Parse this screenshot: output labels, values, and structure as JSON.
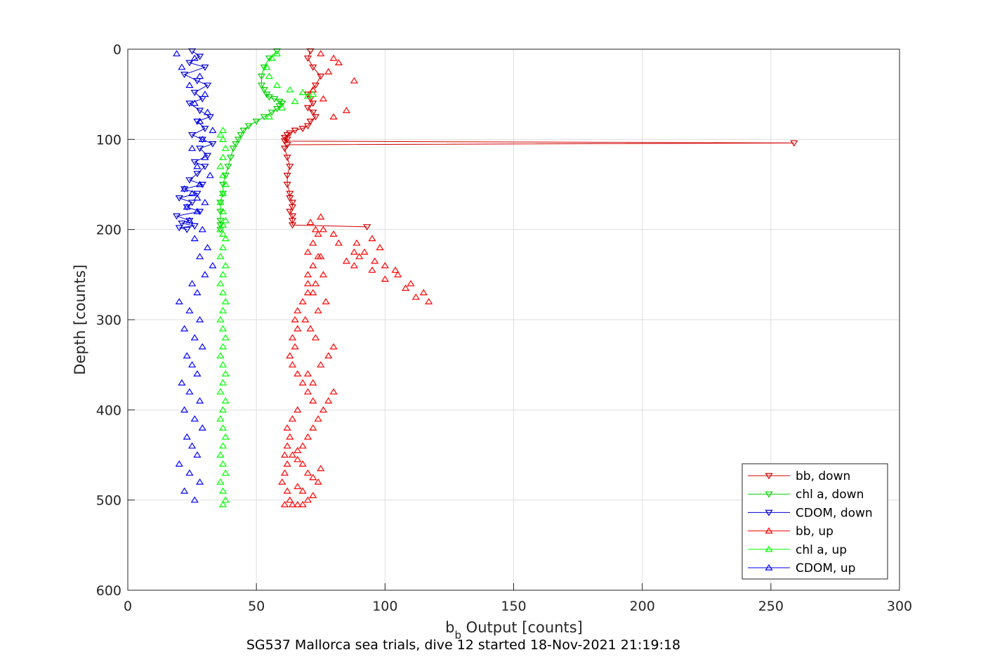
{
  "chart_data": {
    "type": "scatter",
    "title": "",
    "caption": "SG537 Mallorca sea trials, dive 12 started 18-Nov-2021 21:19:18",
    "xlabel_main": "b",
    "xlabel_sub": "b",
    "xlabel_rest": " Output [counts]",
    "ylabel": "Depth [counts]",
    "xlim": [
      0,
      300
    ],
    "ylim": [
      0,
      600
    ],
    "y_reversed": true,
    "xticks": [
      "0",
      "50",
      "100",
      "150",
      "200",
      "250",
      "300"
    ],
    "yticks": [
      "0",
      "100",
      "200",
      "300",
      "400",
      "500",
      "600"
    ],
    "grid": true,
    "legend_position": "bottom-right",
    "series": [
      {
        "name": "bb, down",
        "color": "#d10000",
        "marker": "triangle-down",
        "line": true,
        "x": [
          71,
          70,
          72,
          75,
          73,
          70,
          71,
          72,
          70,
          72,
          73,
          71,
          70,
          68,
          65,
          63,
          62,
          61,
          62,
          61,
          259,
          62,
          61,
          62,
          63,
          62,
          62,
          63,
          63,
          64,
          64,
          63,
          64,
          64,
          64,
          93
        ],
        "y": [
          2,
          10,
          20,
          30,
          40,
          50,
          55,
          60,
          65,
          70,
          75,
          80,
          85,
          88,
          90,
          93,
          95,
          98,
          100,
          102,
          104,
          106,
          110,
          120,
          130,
          140,
          150,
          160,
          165,
          170,
          175,
          180,
          185,
          190,
          195,
          197
        ]
      },
      {
        "name": "chl a, down",
        "color": "#00d000",
        "marker": "triangle-down",
        "line": true,
        "x": [
          58,
          55,
          53,
          52,
          52,
          53,
          54,
          55,
          57,
          59,
          60,
          59,
          58,
          56,
          53,
          50,
          47,
          45,
          44,
          43,
          42,
          41,
          40,
          39,
          38,
          37,
          37,
          36,
          36,
          36,
          36,
          36
        ],
        "y": [
          2,
          10,
          20,
          30,
          40,
          45,
          50,
          53,
          55,
          58,
          60,
          63,
          66,
          70,
          75,
          80,
          85,
          90,
          95,
          100,
          105,
          110,
          120,
          130,
          140,
          150,
          160,
          170,
          180,
          190,
          195,
          200
        ]
      },
      {
        "name": "CDOM, down",
        "color": "#0000d0",
        "marker": "triangle-down",
        "line": true,
        "x": [
          25,
          28,
          24,
          30,
          22,
          27,
          31,
          26,
          29,
          24,
          28,
          32,
          27,
          30,
          25,
          29,
          33,
          28,
          31,
          26,
          30,
          27,
          24,
          29,
          22,
          27,
          20,
          25,
          23,
          28,
          19,
          24,
          21,
          26,
          20,
          23
        ],
        "y": [
          2,
          8,
          15,
          20,
          28,
          35,
          40,
          48,
          55,
          60,
          68,
          75,
          80,
          88,
          95,
          100,
          105,
          110,
          118,
          125,
          130,
          138,
          145,
          150,
          155,
          160,
          165,
          170,
          175,
          180,
          185,
          190,
          193,
          196,
          198,
          200
        ]
      },
      {
        "name": "bb, up",
        "color": "#ff0000",
        "marker": "triangle-up",
        "line": false,
        "x": [
          75,
          80,
          82,
          78,
          88,
          72,
          76,
          85,
          80,
          95,
          98,
          90,
          89,
          92,
          96,
          100,
          104,
          105,
          110,
          115,
          117,
          112,
          108,
          100,
          95,
          85,
          88,
          82,
          80,
          76,
          74,
          72,
          70,
          70,
          72,
          68,
          66,
          65,
          66,
          64,
          65,
          63,
          64,
          66,
          68,
          70,
          72,
          66,
          64,
          62,
          63,
          62,
          61,
          62,
          61,
          60,
          62,
          63,
          61,
          64,
          66,
          68,
          70,
          72,
          68,
          66,
          74,
          72,
          70,
          75,
          68,
          66,
          64,
          66,
          68,
          70,
          72,
          74,
          76,
          78,
          80,
          72,
          70,
          75,
          78,
          80,
          73,
          71,
          69,
          74,
          77,
          70,
          73,
          76,
          88,
          75,
          70,
          72,
          74,
          73,
          71,
          75
        ],
        "y": [
          5,
          10,
          15,
          25,
          35,
          45,
          55,
          68,
          75,
          210,
          220,
          230,
          215,
          225,
          235,
          240,
          245,
          250,
          260,
          270,
          280,
          275,
          265,
          255,
          245,
          235,
          225,
          215,
          205,
          200,
          230,
          240,
          250,
          260,
          270,
          280,
          290,
          300,
          310,
          320,
          330,
          340,
          350,
          360,
          370,
          380,
          390,
          400,
          410,
          420,
          430,
          440,
          450,
          460,
          470,
          480,
          490,
          500,
          505,
          505,
          505,
          505,
          500,
          495,
          490,
          485,
          480,
          475,
          470,
          465,
          460,
          455,
          450,
          445,
          440,
          430,
          420,
          410,
          400,
          390,
          380,
          370,
          360,
          350,
          340,
          330,
          320,
          310,
          300,
          290,
          280,
          270,
          260,
          250,
          240,
          230,
          225,
          215,
          205,
          200,
          192,
          186
        ]
      },
      {
        "name": "chl a, up",
        "color": "#00ff00",
        "marker": "triangle-up",
        "line": false,
        "x": [
          37,
          38,
          37,
          36,
          38,
          37,
          36,
          37,
          38,
          37,
          36,
          37,
          38,
          36,
          37,
          38,
          37,
          36,
          37,
          38,
          37,
          36,
          37,
          38,
          37,
          36,
          37,
          38,
          36,
          37,
          38,
          37,
          36,
          37,
          38,
          37,
          36,
          37,
          38,
          37,
          36,
          37,
          38,
          37,
          36,
          37,
          55,
          60,
          65,
          70,
          72,
          68,
          63,
          58,
          55,
          54,
          56,
          58
        ],
        "y": [
          505,
          500,
          490,
          480,
          470,
          460,
          450,
          440,
          430,
          420,
          410,
          400,
          390,
          380,
          370,
          360,
          350,
          340,
          330,
          320,
          310,
          300,
          290,
          280,
          270,
          260,
          250,
          240,
          230,
          220,
          210,
          205,
          200,
          195,
          190,
          180,
          170,
          160,
          150,
          140,
          130,
          120,
          110,
          100,
          95,
          90,
          75,
          65,
          58,
          52,
          50,
          48,
          45,
          40,
          30,
          20,
          10,
          5
        ]
      },
      {
        "name": "CDOM, up",
        "color": "#0000ff",
        "marker": "triangle-up",
        "line": false,
        "x": [
          26,
          22,
          28,
          24,
          20,
          27,
          25,
          23,
          29,
          26,
          22,
          28,
          24,
          21,
          27,
          25,
          23,
          29,
          26,
          22,
          28,
          24,
          20,
          27,
          25,
          30,
          33,
          28,
          31,
          26,
          29,
          24,
          27,
          30,
          25,
          28,
          32,
          27,
          30,
          25,
          29,
          33,
          28,
          31,
          26,
          30,
          24,
          28,
          21,
          26,
          19,
          23,
          27,
          22
        ],
        "y": [
          500,
          490,
          480,
          470,
          460,
          450,
          440,
          430,
          420,
          410,
          400,
          390,
          380,
          370,
          360,
          350,
          340,
          330,
          320,
          310,
          300,
          290,
          280,
          270,
          260,
          250,
          240,
          230,
          220,
          210,
          200,
          190,
          180,
          170,
          160,
          150,
          140,
          130,
          120,
          110,
          100,
          90,
          80,
          70,
          60,
          50,
          40,
          30,
          20,
          10,
          5,
          175,
          165,
          155
        ]
      }
    ]
  }
}
